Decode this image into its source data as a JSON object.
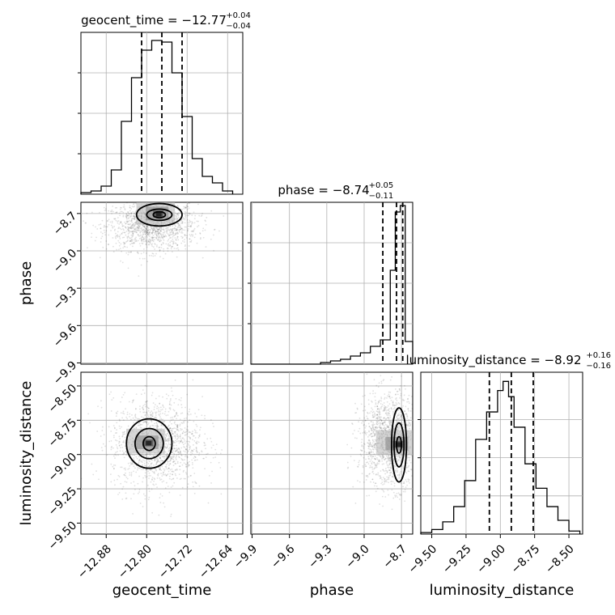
{
  "chart_data": {
    "type": "corner",
    "parameters": [
      "geocent_time",
      "phase",
      "luminosity_distance"
    ],
    "ranges": {
      "geocent_time": [
        -12.93,
        -12.61
      ],
      "phase": [
        -9.91,
        -8.61
      ],
      "luminosity_distance": [
        -9.58,
        -8.4
      ]
    },
    "ticks": {
      "geocent_time": [
        -12.88,
        -12.8,
        -12.72,
        -12.64
      ],
      "phase": [
        -9.9,
        -9.6,
        -9.3,
        -9.0,
        -8.7
      ],
      "luminosity_distance": [
        -9.5,
        -9.25,
        -9.0,
        -8.75,
        -8.5
      ]
    },
    "tick_labels": {
      "geocent_time": [
        "−12.88",
        "−12.80",
        "−12.72",
        "−12.64"
      ],
      "phase": [
        "−9.9",
        "−9.6",
        "−9.3",
        "−9.0",
        "−8.7"
      ],
      "luminosity_distance": [
        "−9.50",
        "−9.25",
        "−9.00",
        "−8.75",
        "−8.50"
      ]
    },
    "titles": [
      {
        "name": "geocent_time",
        "text": "geocent_time = −12.77",
        "plus": "+0.04",
        "minus": "−0.04"
      },
      {
        "name": "phase",
        "text": "phase = −8.74",
        "plus": "+0.05",
        "minus": "−0.11"
      },
      {
        "name": "luminosity_distance",
        "text": "luminosity_distance = −8.92",
        "plus": "+0.16",
        "minus": "−0.16"
      }
    ],
    "quantiles": {
      "geocent_time": [
        -12.81,
        -12.77,
        -12.73
      ],
      "phase": [
        -8.85,
        -8.74,
        -8.69
      ],
      "luminosity_distance": [
        -9.08,
        -8.92,
        -8.76
      ]
    },
    "histograms": {
      "geocent_time": {
        "bins": [
          -12.93,
          -12.91,
          -12.89,
          -12.87,
          -12.85,
          -12.83,
          -12.81,
          -12.79,
          -12.77,
          -12.75,
          -12.73,
          -12.71,
          -12.69,
          -12.67,
          -12.65,
          -12.63
        ],
        "counts": [
          1,
          2,
          5,
          15,
          45,
          72,
          89,
          95,
          94,
          75,
          48,
          22,
          11,
          7,
          2
        ],
        "peak": 100
      },
      "phase": {
        "bins": [
          -9.91,
          -9.83,
          -9.75,
          -9.67,
          -9.59,
          -9.51,
          -9.43,
          -9.35,
          -9.27,
          -9.19,
          -9.11,
          -9.03,
          -8.95,
          -8.87,
          -8.79,
          -8.75,
          -8.71,
          -8.67,
          -8.61
        ],
        "counts": [
          0,
          0,
          0,
          0,
          0,
          0,
          0,
          1,
          2,
          3,
          5,
          7,
          11,
          15,
          58,
          94,
          98,
          14
        ],
        "peak": 100
      },
      "luminosity_distance": {
        "bins": [
          -9.58,
          -9.5,
          -9.42,
          -9.34,
          -9.26,
          -9.18,
          -9.1,
          -9.02,
          -8.98,
          -8.94,
          -8.9,
          -8.82,
          -8.74,
          -8.66,
          -8.58,
          -8.5,
          -8.42
        ],
        "counts": [
          1,
          3,
          8,
          18,
          35,
          62,
          80,
          94,
          100,
          90,
          70,
          46,
          30,
          18,
          9,
          2
        ],
        "peak": 106
      }
    },
    "scatter": {
      "phase_vs_geocent_time": {
        "x_mean": -12.79,
        "x_sd": 0.045,
        "y_mean": -8.8,
        "y_sd": 0.1
      },
      "luminosity_distance_vs_geocent_time": {
        "x_mean": -12.78,
        "x_sd": 0.045,
        "y_mean": -8.92,
        "y_sd": 0.17
      },
      "luminosity_distance_vs_phase": {
        "x_mean": -8.8,
        "x_sd": 0.12,
        "y_mean": -8.9,
        "y_sd": 0.17
      }
    },
    "contours": {
      "phase_vs_geocent_time": {
        "center": [
          -12.775,
          -8.71
        ],
        "levels": [
          [
            0.012,
            0.025
          ],
          [
            0.025,
            0.045
          ],
          [
            0.045,
            0.09
          ]
        ]
      },
      "luminosity_distance_vs_geocent_time": {
        "center": [
          -12.795,
          -8.92
        ],
        "levels": [
          [
            0.012,
            0.05
          ],
          [
            0.028,
            0.11
          ],
          [
            0.045,
            0.18
          ]
        ]
      },
      "luminosity_distance_vs_phase": {
        "center": [
          -8.72,
          -8.93
        ],
        "levels": [
          [
            0.02,
            0.06
          ],
          [
            0.04,
            0.16
          ],
          [
            0.06,
            0.27
          ]
        ]
      }
    },
    "grid": true
  }
}
